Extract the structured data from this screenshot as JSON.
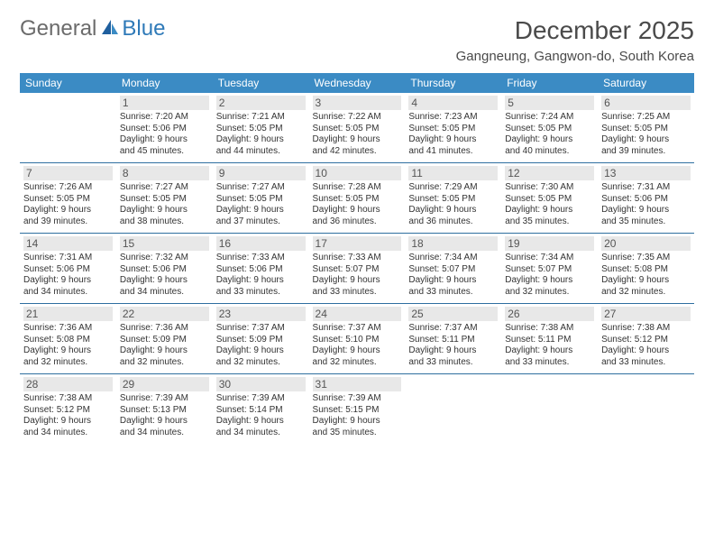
{
  "logo": {
    "text1": "General",
    "text2": "Blue"
  },
  "title": "December 2025",
  "location": "Gangneung, Gangwon-do, South Korea",
  "colors": {
    "header_bg": "#3b8bc4",
    "header_text": "#ffffff",
    "row_border": "#2f6fa0",
    "daynum_bg": "#e8e8e8",
    "body_text": "#333333",
    "logo_gray": "#6b6b6b",
    "logo_blue": "#2f7ab8"
  },
  "days_of_week": [
    "Sunday",
    "Monday",
    "Tuesday",
    "Wednesday",
    "Thursday",
    "Friday",
    "Saturday"
  ],
  "weeks": [
    [
      null,
      {
        "n": "1",
        "sr": "Sunrise: 7:20 AM",
        "ss": "Sunset: 5:06 PM",
        "dl1": "Daylight: 9 hours",
        "dl2": "and 45 minutes."
      },
      {
        "n": "2",
        "sr": "Sunrise: 7:21 AM",
        "ss": "Sunset: 5:05 PM",
        "dl1": "Daylight: 9 hours",
        "dl2": "and 44 minutes."
      },
      {
        "n": "3",
        "sr": "Sunrise: 7:22 AM",
        "ss": "Sunset: 5:05 PM",
        "dl1": "Daylight: 9 hours",
        "dl2": "and 42 minutes."
      },
      {
        "n": "4",
        "sr": "Sunrise: 7:23 AM",
        "ss": "Sunset: 5:05 PM",
        "dl1": "Daylight: 9 hours",
        "dl2": "and 41 minutes."
      },
      {
        "n": "5",
        "sr": "Sunrise: 7:24 AM",
        "ss": "Sunset: 5:05 PM",
        "dl1": "Daylight: 9 hours",
        "dl2": "and 40 minutes."
      },
      {
        "n": "6",
        "sr": "Sunrise: 7:25 AM",
        "ss": "Sunset: 5:05 PM",
        "dl1": "Daylight: 9 hours",
        "dl2": "and 39 minutes."
      }
    ],
    [
      {
        "n": "7",
        "sr": "Sunrise: 7:26 AM",
        "ss": "Sunset: 5:05 PM",
        "dl1": "Daylight: 9 hours",
        "dl2": "and 39 minutes."
      },
      {
        "n": "8",
        "sr": "Sunrise: 7:27 AM",
        "ss": "Sunset: 5:05 PM",
        "dl1": "Daylight: 9 hours",
        "dl2": "and 38 minutes."
      },
      {
        "n": "9",
        "sr": "Sunrise: 7:27 AM",
        "ss": "Sunset: 5:05 PM",
        "dl1": "Daylight: 9 hours",
        "dl2": "and 37 minutes."
      },
      {
        "n": "10",
        "sr": "Sunrise: 7:28 AM",
        "ss": "Sunset: 5:05 PM",
        "dl1": "Daylight: 9 hours",
        "dl2": "and 36 minutes."
      },
      {
        "n": "11",
        "sr": "Sunrise: 7:29 AM",
        "ss": "Sunset: 5:05 PM",
        "dl1": "Daylight: 9 hours",
        "dl2": "and 36 minutes."
      },
      {
        "n": "12",
        "sr": "Sunrise: 7:30 AM",
        "ss": "Sunset: 5:05 PM",
        "dl1": "Daylight: 9 hours",
        "dl2": "and 35 minutes."
      },
      {
        "n": "13",
        "sr": "Sunrise: 7:31 AM",
        "ss": "Sunset: 5:06 PM",
        "dl1": "Daylight: 9 hours",
        "dl2": "and 35 minutes."
      }
    ],
    [
      {
        "n": "14",
        "sr": "Sunrise: 7:31 AM",
        "ss": "Sunset: 5:06 PM",
        "dl1": "Daylight: 9 hours",
        "dl2": "and 34 minutes."
      },
      {
        "n": "15",
        "sr": "Sunrise: 7:32 AM",
        "ss": "Sunset: 5:06 PM",
        "dl1": "Daylight: 9 hours",
        "dl2": "and 34 minutes."
      },
      {
        "n": "16",
        "sr": "Sunrise: 7:33 AM",
        "ss": "Sunset: 5:06 PM",
        "dl1": "Daylight: 9 hours",
        "dl2": "and 33 minutes."
      },
      {
        "n": "17",
        "sr": "Sunrise: 7:33 AM",
        "ss": "Sunset: 5:07 PM",
        "dl1": "Daylight: 9 hours",
        "dl2": "and 33 minutes."
      },
      {
        "n": "18",
        "sr": "Sunrise: 7:34 AM",
        "ss": "Sunset: 5:07 PM",
        "dl1": "Daylight: 9 hours",
        "dl2": "and 33 minutes."
      },
      {
        "n": "19",
        "sr": "Sunrise: 7:34 AM",
        "ss": "Sunset: 5:07 PM",
        "dl1": "Daylight: 9 hours",
        "dl2": "and 32 minutes."
      },
      {
        "n": "20",
        "sr": "Sunrise: 7:35 AM",
        "ss": "Sunset: 5:08 PM",
        "dl1": "Daylight: 9 hours",
        "dl2": "and 32 minutes."
      }
    ],
    [
      {
        "n": "21",
        "sr": "Sunrise: 7:36 AM",
        "ss": "Sunset: 5:08 PM",
        "dl1": "Daylight: 9 hours",
        "dl2": "and 32 minutes."
      },
      {
        "n": "22",
        "sr": "Sunrise: 7:36 AM",
        "ss": "Sunset: 5:09 PM",
        "dl1": "Daylight: 9 hours",
        "dl2": "and 32 minutes."
      },
      {
        "n": "23",
        "sr": "Sunrise: 7:37 AM",
        "ss": "Sunset: 5:09 PM",
        "dl1": "Daylight: 9 hours",
        "dl2": "and 32 minutes."
      },
      {
        "n": "24",
        "sr": "Sunrise: 7:37 AM",
        "ss": "Sunset: 5:10 PM",
        "dl1": "Daylight: 9 hours",
        "dl2": "and 32 minutes."
      },
      {
        "n": "25",
        "sr": "Sunrise: 7:37 AM",
        "ss": "Sunset: 5:11 PM",
        "dl1": "Daylight: 9 hours",
        "dl2": "and 33 minutes."
      },
      {
        "n": "26",
        "sr": "Sunrise: 7:38 AM",
        "ss": "Sunset: 5:11 PM",
        "dl1": "Daylight: 9 hours",
        "dl2": "and 33 minutes."
      },
      {
        "n": "27",
        "sr": "Sunrise: 7:38 AM",
        "ss": "Sunset: 5:12 PM",
        "dl1": "Daylight: 9 hours",
        "dl2": "and 33 minutes."
      }
    ],
    [
      {
        "n": "28",
        "sr": "Sunrise: 7:38 AM",
        "ss": "Sunset: 5:12 PM",
        "dl1": "Daylight: 9 hours",
        "dl2": "and 34 minutes."
      },
      {
        "n": "29",
        "sr": "Sunrise: 7:39 AM",
        "ss": "Sunset: 5:13 PM",
        "dl1": "Daylight: 9 hours",
        "dl2": "and 34 minutes."
      },
      {
        "n": "30",
        "sr": "Sunrise: 7:39 AM",
        "ss": "Sunset: 5:14 PM",
        "dl1": "Daylight: 9 hours",
        "dl2": "and 34 minutes."
      },
      {
        "n": "31",
        "sr": "Sunrise: 7:39 AM",
        "ss": "Sunset: 5:15 PM",
        "dl1": "Daylight: 9 hours",
        "dl2": "and 35 minutes."
      },
      null,
      null,
      null
    ]
  ]
}
